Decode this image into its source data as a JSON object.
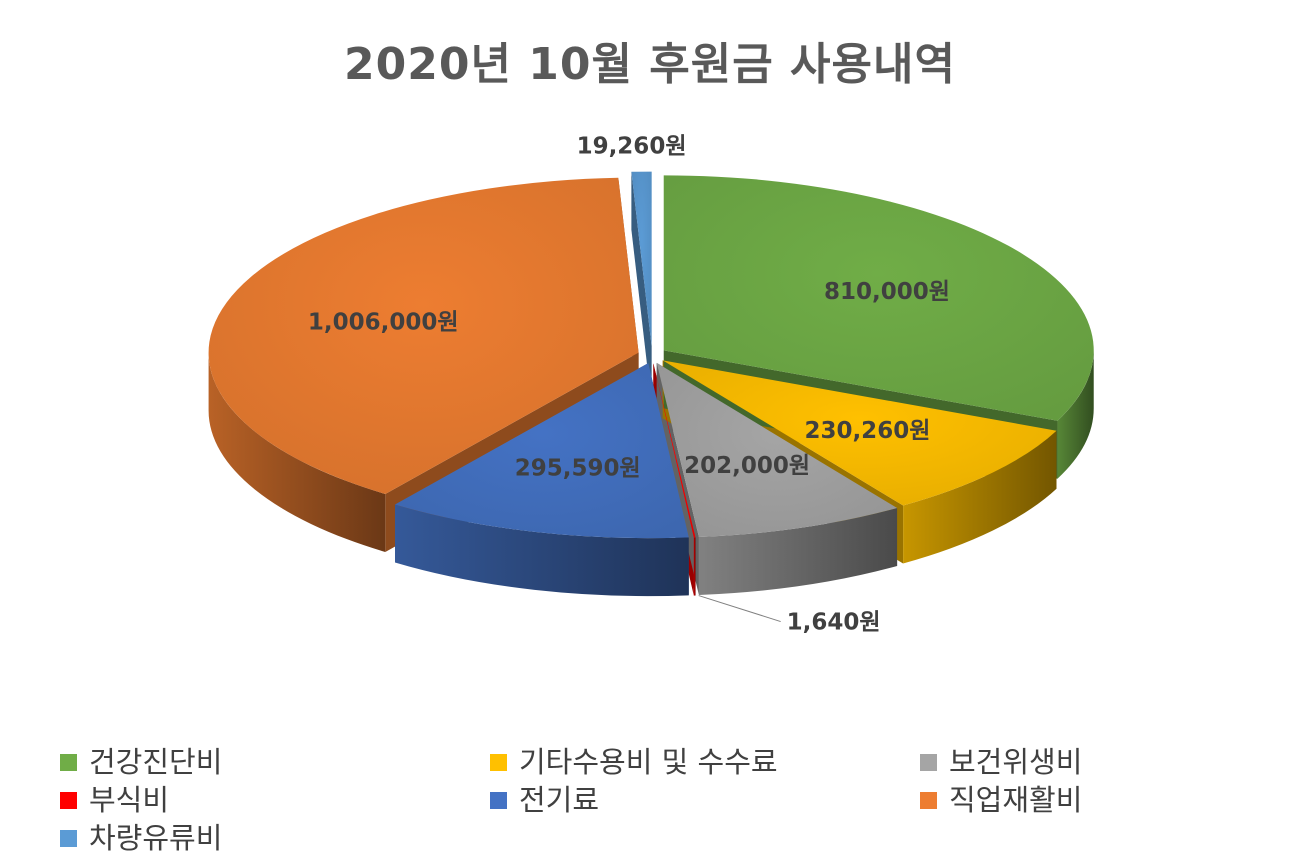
{
  "chart_data": {
    "type": "pie",
    "title": "2020년 10월 후원금 사용내역",
    "style": "3d-exploded",
    "slices": [
      {
        "name": "건강진단비",
        "value": 810000,
        "label": "810,000원",
        "color": "#70AD47"
      },
      {
        "name": "기타수용비 및 수수료",
        "value": 230260,
        "label": "230,260원",
        "color": "#FFC000"
      },
      {
        "name": "보건위생비",
        "value": 202000,
        "label": "202,000원",
        "color": "#A5A5A5"
      },
      {
        "name": "부식비",
        "value": 1640,
        "label": "1,640원",
        "color": "#FF0000"
      },
      {
        "name": "전기료",
        "value": 295590,
        "label": "295,590원",
        "color": "#4472C4"
      },
      {
        "name": "직업재활비",
        "value": 1006000,
        "label": "1,006,000원",
        "color": "#ED7D31"
      },
      {
        "name": "차량유류비",
        "value": 19260,
        "label": "19,260원",
        "color": "#5B9BD5"
      }
    ],
    "legend": {
      "position": "bottom"
    }
  }
}
